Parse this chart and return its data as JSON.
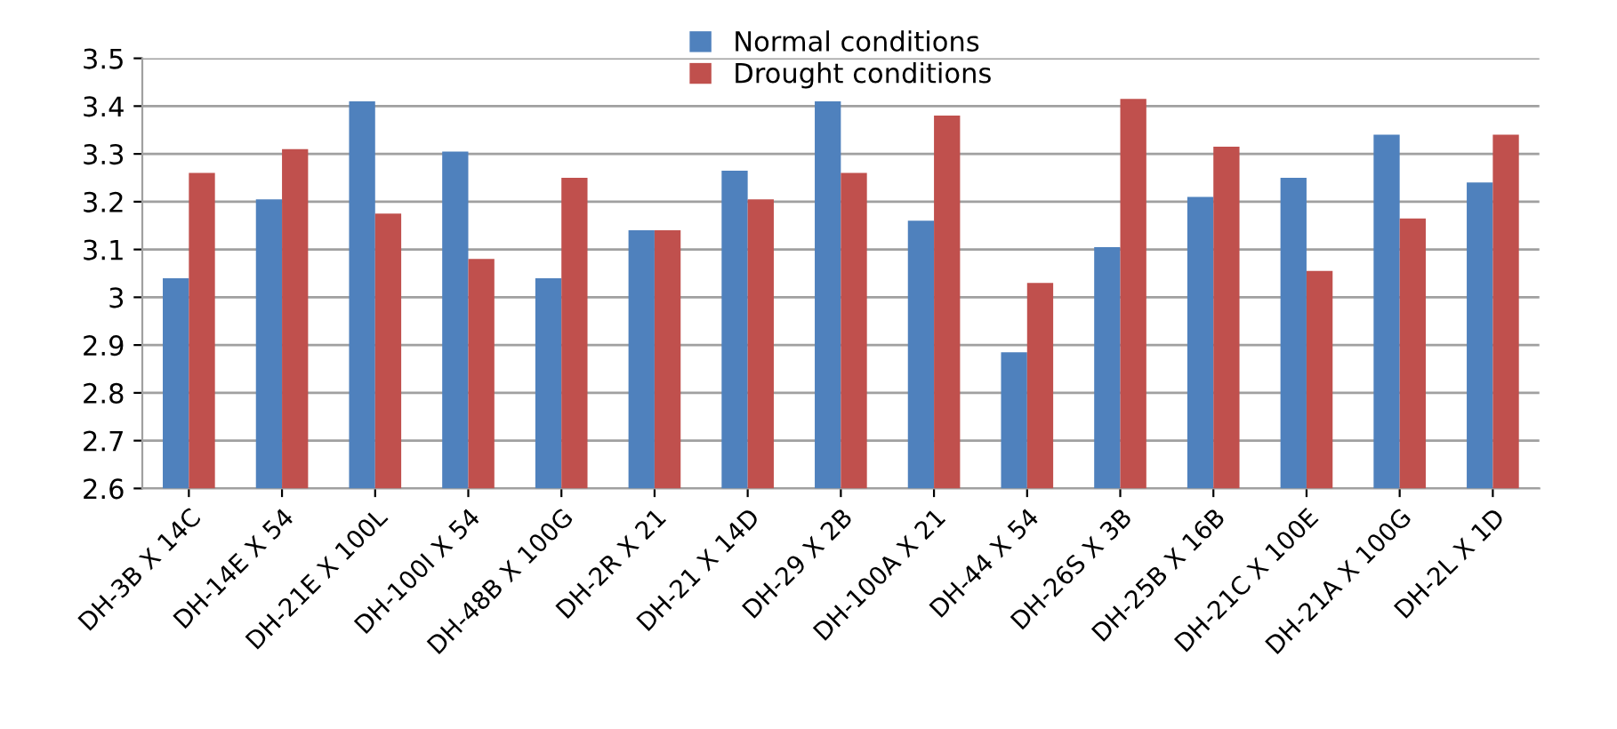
{
  "chart_data": {
    "type": "bar",
    "categories": [
      "DH-3B X 14C",
      "DH-14E X 54",
      "DH-21E X 100L",
      "DH-100I X 54",
      "DH-48B X 100G",
      "DH-2R X 21",
      "DH-21 X 14D",
      "DH-29 X 2B",
      "DH-100A X 21",
      "DH-44 X 54",
      "DH-26S X 3B",
      "DH-25B X 16B",
      "DH-21C X 100E",
      "DH-21A X 100G",
      "DH-2L X 1D"
    ],
    "series": [
      {
        "name": "Normal conditions",
        "color": "#4f81bd",
        "values": [
          3.04,
          3.205,
          3.41,
          3.305,
          3.04,
          3.14,
          3.265,
          3.41,
          3.16,
          2.885,
          3.105,
          3.21,
          3.25,
          3.34,
          3.24
        ]
      },
      {
        "name": "Drought conditions",
        "color": "#c0504d",
        "values": [
          3.26,
          3.31,
          3.175,
          3.08,
          3.25,
          3.14,
          3.205,
          3.26,
          3.38,
          3.03,
          3.415,
          3.315,
          3.055,
          3.165,
          3.34
        ]
      }
    ],
    "ylim": [
      2.6,
      3.5
    ],
    "yticks": [
      2.6,
      2.7,
      2.8,
      2.9,
      3,
      3.1,
      3.2,
      3.3,
      3.4,
      3.5
    ],
    "grid": "y",
    "legend": "top"
  }
}
